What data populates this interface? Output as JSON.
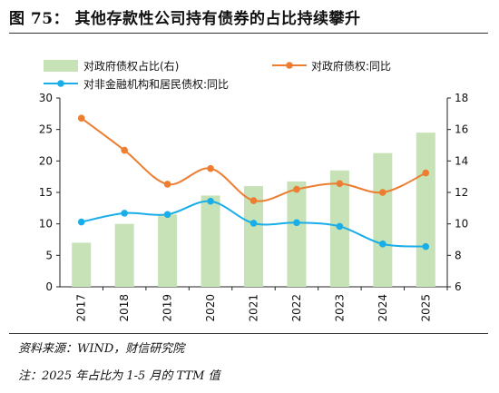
{
  "title": "图 75：  其他存款性公司持有债券的占比持续攀升",
  "source": "资料来源：WIND，财信研究院",
  "note": "注：2025 年占比为 1-5 月的 TTM 值",
  "colors": {
    "bar": "#c6e2b6",
    "orange": "#ed7d31",
    "blue": "#1aaee8"
  },
  "chart_data": {
    "type": "bar+line",
    "categories": [
      "2017",
      "2018",
      "2019",
      "2020",
      "2021",
      "2022",
      "2023",
      "2024",
      "2025"
    ],
    "series": [
      {
        "name": "对政府债权占比(右)",
        "kind": "bar",
        "axis": "right",
        "values": [
          8.8,
          10.0,
          10.6,
          11.8,
          12.4,
          12.7,
          13.4,
          14.5,
          15.8
        ]
      },
      {
        "name": "对政府债权:同比",
        "kind": "line",
        "axis": "left",
        "values": [
          26.8,
          21.7,
          16.3,
          18.8,
          13.7,
          15.5,
          16.4,
          15.0,
          18.1
        ]
      },
      {
        "name": "对非金融机构和居民债权:同比",
        "kind": "line",
        "axis": "left",
        "values": [
          10.3,
          11.7,
          11.5,
          13.6,
          10.1,
          10.2,
          9.6,
          6.8,
          6.4
        ]
      }
    ],
    "yleft": {
      "min": 0,
      "max": 30,
      "ticks": [
        0,
        5,
        10,
        15,
        20,
        25,
        30
      ]
    },
    "yright": {
      "min": 6,
      "max": 18,
      "ticks": [
        6,
        8,
        10,
        12,
        14,
        16,
        18
      ]
    },
    "legend": "top"
  }
}
